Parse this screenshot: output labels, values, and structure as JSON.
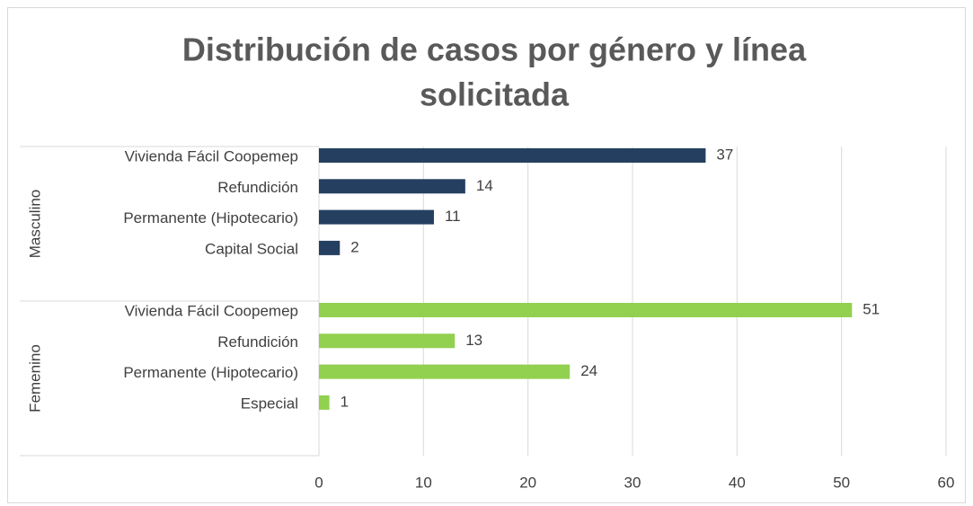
{
  "chart_data": {
    "type": "bar",
    "orientation": "horizontal",
    "title": [
      "Distribución de casos por género y línea",
      "solicitada"
    ],
    "groups": [
      {
        "name": "Masculino",
        "color": "#243f60",
        "categories": [
          "Vivienda Fácil Coopemep",
          "Refundición",
          "Permanente (Hipotecario)",
          "Capital Social"
        ],
        "values": [
          37,
          14,
          11,
          2
        ]
      },
      {
        "name": "Femenino",
        "color": "#92d050",
        "categories": [
          "Vivienda Fácil Coopemep",
          "Refundición",
          "Permanente (Hipotecario)",
          "Especial"
        ],
        "values": [
          51,
          13,
          24,
          1
        ]
      }
    ],
    "xlim": [
      0,
      60
    ],
    "xticks": [
      0,
      10,
      20,
      30,
      40,
      50,
      60
    ],
    "grid": true,
    "data_labels": true
  }
}
